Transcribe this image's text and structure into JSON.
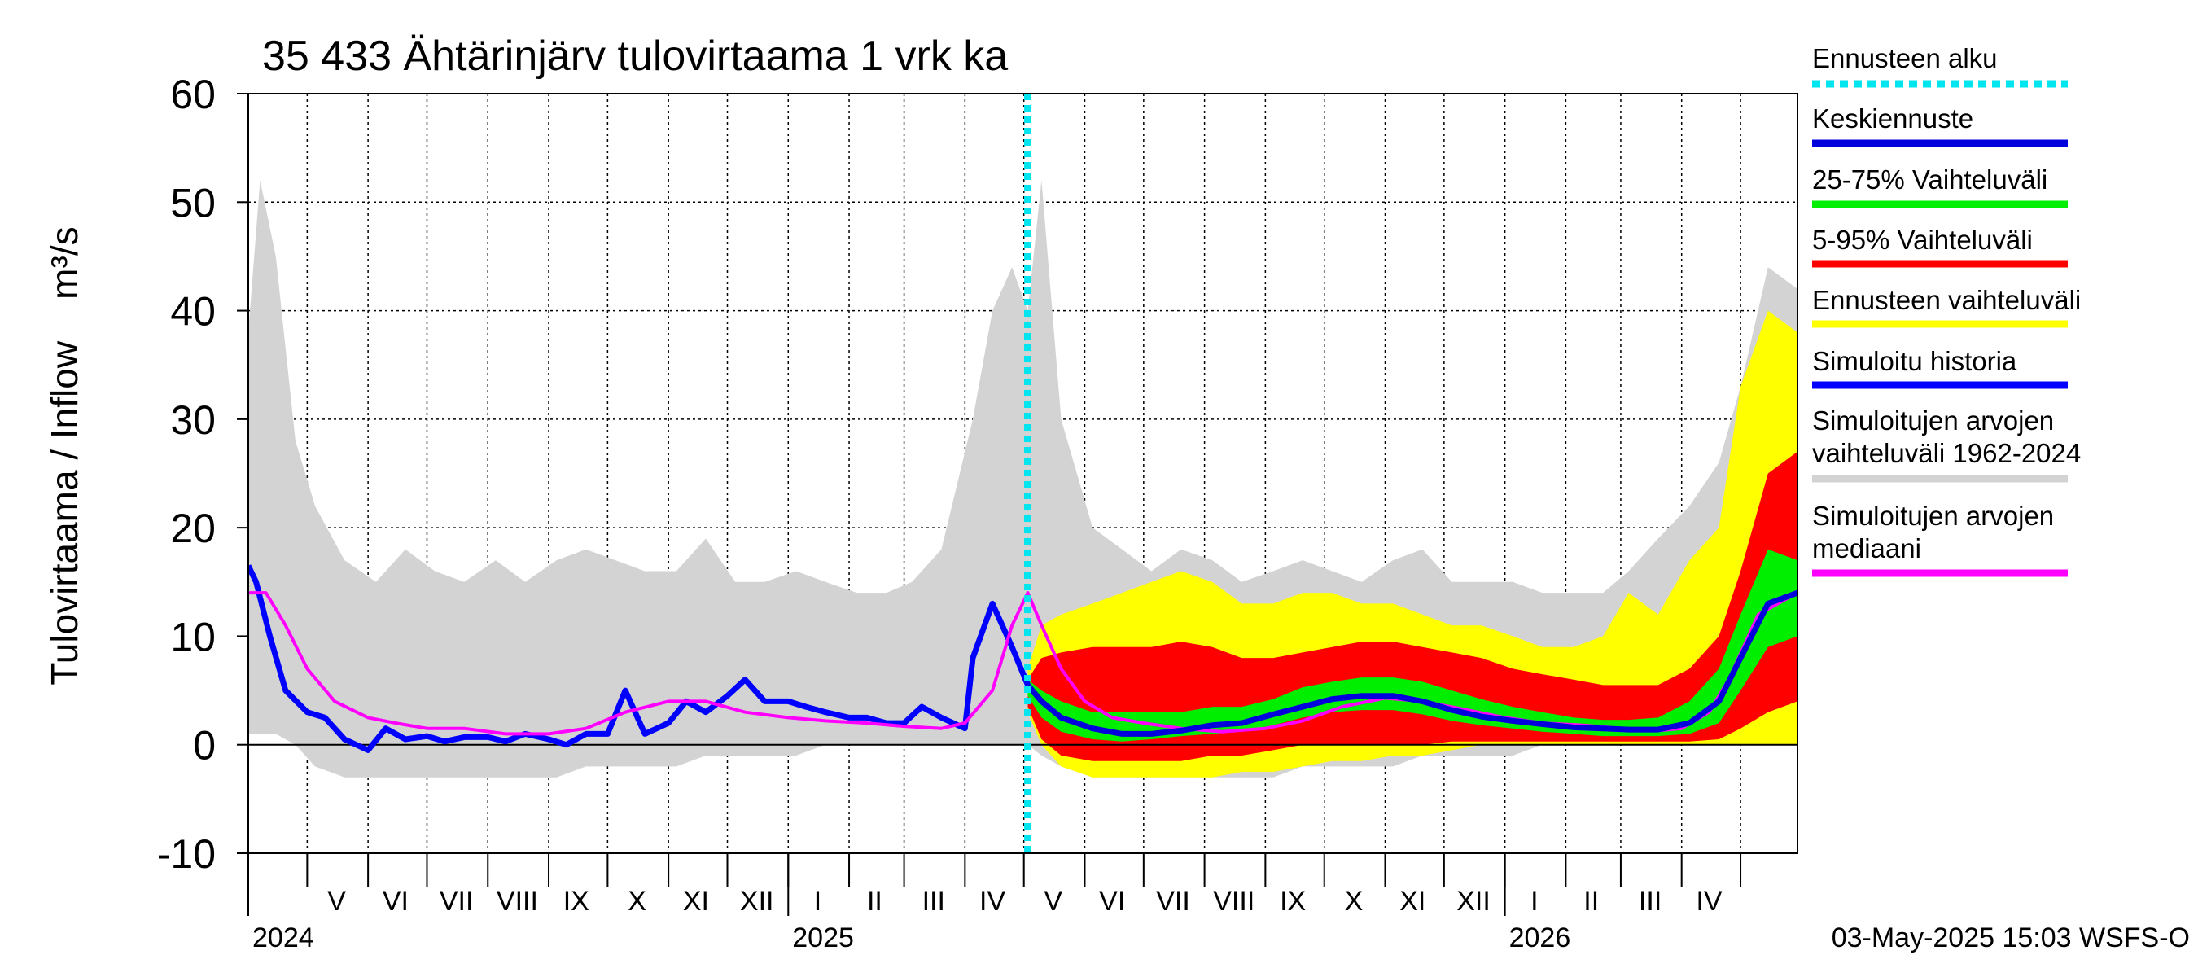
{
  "chart_data": {
    "type": "area",
    "title": "35 433 Ähtärinjärv tulovirtaama 1 vrk ka",
    "ylabel": "Tulovirtaama / Inflow    m³/s",
    "ylim": [
      -10,
      60
    ],
    "yticks": [
      -10,
      0,
      10,
      20,
      30,
      40,
      50,
      60
    ],
    "xlim": [
      "2024-04-01",
      "2026-05-30"
    ],
    "forecast_start": "2025-05-03",
    "grid": true,
    "legend_position": "right",
    "month_labels": [
      {
        "label": "V",
        "date": "2024-05-16"
      },
      {
        "label": "VI",
        "date": "2024-06-15"
      },
      {
        "label": "VII",
        "date": "2024-07-16"
      },
      {
        "label": "VIII",
        "date": "2024-08-16"
      },
      {
        "label": "IX",
        "date": "2024-09-15"
      },
      {
        "label": "X",
        "date": "2024-10-16"
      },
      {
        "label": "XI",
        "date": "2024-11-15"
      },
      {
        "label": "XII",
        "date": "2024-12-16"
      },
      {
        "label": "I",
        "date": "2025-01-16"
      },
      {
        "label": "II",
        "date": "2025-02-14"
      },
      {
        "label": "III",
        "date": "2025-03-16"
      },
      {
        "label": "IV",
        "date": "2025-04-15"
      },
      {
        "label": "V",
        "date": "2025-05-16"
      },
      {
        "label": "VI",
        "date": "2025-06-15"
      },
      {
        "label": "VII",
        "date": "2025-07-16"
      },
      {
        "label": "VIII",
        "date": "2025-08-16"
      },
      {
        "label": "IX",
        "date": "2025-09-15"
      },
      {
        "label": "X",
        "date": "2025-10-16"
      },
      {
        "label": "XI",
        "date": "2025-11-15"
      },
      {
        "label": "XII",
        "date": "2025-12-16"
      },
      {
        "label": "I",
        "date": "2026-01-16"
      },
      {
        "label": "II",
        "date": "2026-02-14"
      },
      {
        "label": "III",
        "date": "2026-03-16"
      },
      {
        "label": "IV",
        "date": "2026-04-15"
      }
    ],
    "month_boundaries": [
      "2024-05-01",
      "2024-06-01",
      "2024-07-01",
      "2024-08-01",
      "2024-09-01",
      "2024-10-01",
      "2024-11-01",
      "2024-12-01",
      "2025-01-01",
      "2025-02-01",
      "2025-03-01",
      "2025-04-01",
      "2025-05-01",
      "2025-06-01",
      "2025-07-01",
      "2025-08-01",
      "2025-09-01",
      "2025-10-01",
      "2025-11-01",
      "2025-12-01",
      "2026-01-01",
      "2026-02-01",
      "2026-03-01",
      "2026-04-01",
      "2026-05-01"
    ],
    "year_boundaries": [
      "2025-01-01",
      "2026-01-01"
    ],
    "year_labels": [
      {
        "label": "2024",
        "date": "2024-04-01"
      },
      {
        "label": "2025",
        "date": "2025-01-01"
      },
      {
        "label": "2026",
        "date": "2026-01-01"
      }
    ],
    "series": [
      {
        "name": "Simuloitujen arvojen vaihteluväli 1962-2024",
        "kind": "band",
        "color": "#d3d3d3",
        "x": [
          "2024-04-01",
          "2024-04-07",
          "2024-04-15",
          "2024-04-25",
          "2024-05-05",
          "2024-05-20",
          "2024-06-05",
          "2024-06-20",
          "2024-07-05",
          "2024-07-20",
          "2024-08-05",
          "2024-08-20",
          "2024-09-05",
          "2024-09-20",
          "2024-10-05",
          "2024-10-20",
          "2024-11-05",
          "2024-11-20",
          "2024-12-05",
          "2024-12-20",
          "2025-01-05",
          "2025-01-20",
          "2025-02-05",
          "2025-02-20",
          "2025-03-05",
          "2025-03-20",
          "2025-04-05",
          "2025-04-15",
          "2025-04-25",
          "2025-05-03",
          "2025-05-10",
          "2025-05-20",
          "2025-06-05",
          "2025-06-20",
          "2025-07-05",
          "2025-07-20",
          "2025-08-05",
          "2025-08-20",
          "2025-09-05",
          "2025-09-20",
          "2025-10-05",
          "2025-10-20",
          "2025-11-05",
          "2025-11-20",
          "2025-12-05",
          "2025-12-20",
          "2026-01-05",
          "2026-01-20",
          "2026-02-05",
          "2026-02-20",
          "2026-03-05",
          "2026-03-20",
          "2026-04-05",
          "2026-04-20",
          "2026-05-01",
          "2026-05-15",
          "2026-05-30"
        ],
        "low": [
          1,
          1,
          1,
          0,
          -2,
          -3,
          -3,
          -3,
          -3,
          -3,
          -3,
          -3,
          -3,
          -2,
          -2,
          -2,
          -2,
          -1,
          -1,
          -1,
          -1,
          0,
          0,
          0,
          0,
          0,
          0,
          0,
          0,
          0,
          -1,
          -2,
          -3,
          -3,
          -3,
          -3,
          -3,
          -3,
          -3,
          -2,
          -2,
          -2,
          -2,
          -1,
          -1,
          -1,
          -1,
          0,
          0,
          0,
          0,
          0,
          0,
          0,
          0,
          0,
          0
        ],
        "high": [
          38,
          52,
          45,
          28,
          22,
          17,
          15,
          18,
          16,
          15,
          17,
          15,
          17,
          18,
          17,
          16,
          16,
          19,
          15,
          15,
          16,
          15,
          14,
          14,
          15,
          18,
          30,
          40,
          44,
          40,
          52,
          30,
          20,
          18,
          16,
          18,
          17,
          15,
          16,
          17,
          16,
          15,
          17,
          18,
          15,
          15,
          15,
          14,
          14,
          14,
          16,
          19,
          22,
          26,
          33,
          44,
          42
        ]
      },
      {
        "name": "Ennusteen vaihteluväli",
        "kind": "band",
        "color": "#ffff00",
        "x": [
          "2025-05-03",
          "2025-05-10",
          "2025-05-20",
          "2025-06-05",
          "2025-06-20",
          "2025-07-05",
          "2025-07-20",
          "2025-08-05",
          "2025-08-20",
          "2025-09-05",
          "2025-09-20",
          "2025-10-05",
          "2025-10-20",
          "2025-11-05",
          "2025-11-20",
          "2025-12-05",
          "2025-12-20",
          "2026-01-05",
          "2026-01-20",
          "2026-02-05",
          "2026-02-20",
          "2026-03-05",
          "2026-03-20",
          "2026-04-05",
          "2026-04-20",
          "2026-05-01",
          "2026-05-15",
          "2026-05-30"
        ],
        "low": [
          3,
          0,
          -2,
          -3,
          -3,
          -3,
          -3,
          -3,
          -2.5,
          -2.5,
          -2,
          -1.5,
          -1.5,
          -1,
          -1,
          -0.5,
          0,
          0,
          0,
          0,
          0,
          0,
          0,
          0,
          0,
          0,
          0,
          0
        ],
        "high": [
          7,
          11,
          12,
          13,
          14,
          15,
          16,
          15,
          13,
          13,
          14,
          14,
          13,
          13,
          12,
          11,
          11,
          10,
          9,
          9,
          10,
          14,
          12,
          17,
          20,
          33,
          40,
          38
        ]
      },
      {
        "name": "5-95% Vaihteluväli",
        "kind": "band",
        "color": "#ff0000",
        "x": [
          "2025-05-03",
          "2025-05-10",
          "2025-05-20",
          "2025-06-05",
          "2025-06-20",
          "2025-07-05",
          "2025-07-20",
          "2025-08-05",
          "2025-08-20",
          "2025-09-05",
          "2025-09-20",
          "2025-10-05",
          "2025-10-20",
          "2025-11-05",
          "2025-11-20",
          "2025-12-05",
          "2025-12-20",
          "2026-01-05",
          "2026-01-20",
          "2026-02-05",
          "2026-02-20",
          "2026-03-05",
          "2026-03-20",
          "2026-04-05",
          "2026-04-20",
          "2026-05-01",
          "2026-05-15",
          "2026-05-30"
        ],
        "low": [
          3.5,
          0.5,
          -1,
          -1.5,
          -1.5,
          -1.5,
          -1.5,
          -1,
          -1,
          -0.5,
          0,
          0,
          0,
          0,
          0,
          0.3,
          0.3,
          0.3,
          0.3,
          0.3,
          0.3,
          0.3,
          0.3,
          0.3,
          0.5,
          1.5,
          3,
          4
        ],
        "high": [
          6,
          8,
          8.5,
          9,
          9,
          9,
          9.5,
          9,
          8,
          8,
          8.5,
          9,
          9.5,
          9.5,
          9,
          8.5,
          8,
          7,
          6.5,
          6,
          5.5,
          5.5,
          5.5,
          7,
          10,
          16,
          25,
          27
        ]
      },
      {
        "name": "25-75% Vaihteluväli",
        "kind": "band",
        "color": "#00ee00",
        "x": [
          "2025-05-03",
          "2025-05-10",
          "2025-05-20",
          "2025-06-05",
          "2025-06-20",
          "2025-07-05",
          "2025-07-20",
          "2025-08-05",
          "2025-08-20",
          "2025-09-05",
          "2025-09-20",
          "2025-10-05",
          "2025-10-20",
          "2025-11-05",
          "2025-11-20",
          "2025-12-05",
          "2025-12-20",
          "2026-01-05",
          "2026-01-20",
          "2026-02-05",
          "2026-02-20",
          "2026-03-05",
          "2026-03-20",
          "2026-04-05",
          "2026-04-20",
          "2026-05-01",
          "2026-05-15",
          "2026-05-30"
        ],
        "low": [
          4.5,
          2.5,
          1.2,
          0.5,
          0.3,
          0.5,
          0.8,
          1.0,
          1.2,
          1.8,
          2.5,
          3.0,
          3.2,
          3.2,
          2.8,
          2.2,
          1.8,
          1.5,
          1.2,
          1.0,
          0.8,
          0.8,
          0.8,
          1.0,
          2.0,
          5,
          9,
          10
        ],
        "high": [
          6,
          5,
          4,
          3,
          3,
          3,
          3,
          3.5,
          3.5,
          4.2,
          5.3,
          5.8,
          6.2,
          6.2,
          5.8,
          5.0,
          4.2,
          3.5,
          3.0,
          2.5,
          2.3,
          2.3,
          2.5,
          4.0,
          7.0,
          12,
          18,
          17
        ]
      },
      {
        "name": "Simuloitu historia",
        "kind": "line",
        "color": "#0000ff",
        "x": [
          "2024-04-01",
          "2024-04-05",
          "2024-04-12",
          "2024-04-20",
          "2024-05-01",
          "2024-05-10",
          "2024-05-20",
          "2024-06-01",
          "2024-06-10",
          "2024-06-20",
          "2024-07-01",
          "2024-07-10",
          "2024-07-20",
          "2024-08-01",
          "2024-08-10",
          "2024-08-20",
          "2024-09-01",
          "2024-09-10",
          "2024-09-20",
          "2024-10-01",
          "2024-10-10",
          "2024-10-20",
          "2024-11-01",
          "2024-11-10",
          "2024-11-20",
          "2024-12-01",
          "2024-12-10",
          "2024-12-20",
          "2025-01-01",
          "2025-01-10",
          "2025-01-20",
          "2025-02-01",
          "2025-02-10",
          "2025-02-20",
          "2025-03-01",
          "2025-03-10",
          "2025-03-20",
          "2025-04-01",
          "2025-04-05",
          "2025-04-15",
          "2025-04-25",
          "2025-05-03"
        ],
        "y": [
          16.5,
          15,
          10,
          5,
          3,
          2.5,
          0.5,
          -0.5,
          1.5,
          0.5,
          0.8,
          0.3,
          0.7,
          0.7,
          0.3,
          1.0,
          0.5,
          0,
          1.0,
          1.0,
          5.0,
          1.0,
          2.0,
          4.0,
          3.0,
          4.5,
          6.0,
          4.0,
          4.0,
          3.5,
          3.0,
          2.5,
          2.5,
          2.0,
          2.0,
          3.5,
          2.5,
          1.5,
          8.0,
          13.0,
          9.0,
          5.5
        ]
      },
      {
        "name": "Simuloitujen arvojen mediaani",
        "kind": "line",
        "color": "#ff00ff",
        "x": [
          "2024-04-01",
          "2024-04-10",
          "2024-04-20",
          "2024-05-01",
          "2024-05-15",
          "2024-06-01",
          "2024-06-15",
          "2024-07-01",
          "2024-07-20",
          "2024-08-10",
          "2024-09-01",
          "2024-09-20",
          "2024-10-10",
          "2024-11-01",
          "2024-11-20",
          "2024-12-10",
          "2025-01-01",
          "2025-01-20",
          "2025-02-10",
          "2025-03-01",
          "2025-03-20",
          "2025-04-01",
          "2025-04-15",
          "2025-04-25",
          "2025-05-03",
          "2025-05-10",
          "2025-05-20",
          "2025-06-01",
          "2025-06-15",
          "2025-07-01",
          "2025-07-20",
          "2025-08-10",
          "2025-09-01",
          "2025-09-20",
          "2025-10-10",
          "2025-11-01",
          "2025-11-20",
          "2025-12-10",
          "2026-01-01",
          "2026-01-20",
          "2026-02-10",
          "2026-03-01",
          "2026-03-20",
          "2026-04-01",
          "2026-04-15",
          "2026-04-25",
          "2026-05-10",
          "2026-05-30"
        ],
        "y": [
          14,
          14,
          11,
          7,
          4,
          2.5,
          2,
          1.5,
          1.5,
          1,
          1,
          1.5,
          3,
          4,
          4,
          3,
          2.5,
          2.2,
          2,
          1.7,
          1.5,
          2,
          5,
          11,
          14,
          11,
          7,
          4,
          2.5,
          2,
          1.5,
          1.2,
          1.5,
          2.2,
          3.5,
          4.3,
          4,
          3.3,
          2.5,
          2.0,
          1.8,
          1.5,
          1.3,
          1.5,
          3,
          6,
          12,
          14
        ]
      },
      {
        "name": "Keskiennuste",
        "kind": "line",
        "color": "#0000dd",
        "x": [
          "2025-05-03",
          "2025-05-10",
          "2025-05-20",
          "2025-06-05",
          "2025-06-20",
          "2025-07-05",
          "2025-07-20",
          "2025-08-05",
          "2025-08-20",
          "2025-09-05",
          "2025-09-20",
          "2025-10-05",
          "2025-10-20",
          "2025-11-05",
          "2025-11-20",
          "2025-12-05",
          "2025-12-20",
          "2026-01-05",
          "2026-01-20",
          "2026-02-05",
          "2026-02-20",
          "2026-03-05",
          "2026-03-20",
          "2026-04-05",
          "2026-04-20",
          "2026-05-01",
          "2026-05-15",
          "2026-05-30"
        ],
        "y": [
          5.5,
          4,
          2.5,
          1.5,
          1,
          1,
          1.3,
          1.8,
          2,
          2.8,
          3.5,
          4.2,
          4.5,
          4.5,
          4.0,
          3.2,
          2.6,
          2.2,
          1.9,
          1.6,
          1.5,
          1.4,
          1.4,
          2,
          4,
          8,
          13,
          14
        ]
      }
    ],
    "legend": [
      {
        "label": "Ennusteen alku",
        "color": "#00e5ee",
        "style": "dotted"
      },
      {
        "label": "Keskiennuste",
        "color": "#0000dd",
        "style": "solid"
      },
      {
        "label": "25-75% Vaihteluväli",
        "color": "#00ee00",
        "style": "solid"
      },
      {
        "label": "5-95% Vaihteluväli",
        "color": "#ff0000",
        "style": "solid"
      },
      {
        "label": "Ennusteen vaihteluväli",
        "color": "#ffff00",
        "style": "solid"
      },
      {
        "label": "Simuloitu historia",
        "color": "#0000ff",
        "style": "solid"
      },
      {
        "label": "Simuloitujen arvojen vaihteluväli 1962-2024",
        "color": "#d3d3d3",
        "style": "solid"
      },
      {
        "label": "Simuloitujen arvojen mediaani",
        "color": "#ff00ff",
        "style": "solid"
      }
    ]
  },
  "footer": {
    "timestamp": "03-May-2025 15:03 WSFS-O"
  }
}
